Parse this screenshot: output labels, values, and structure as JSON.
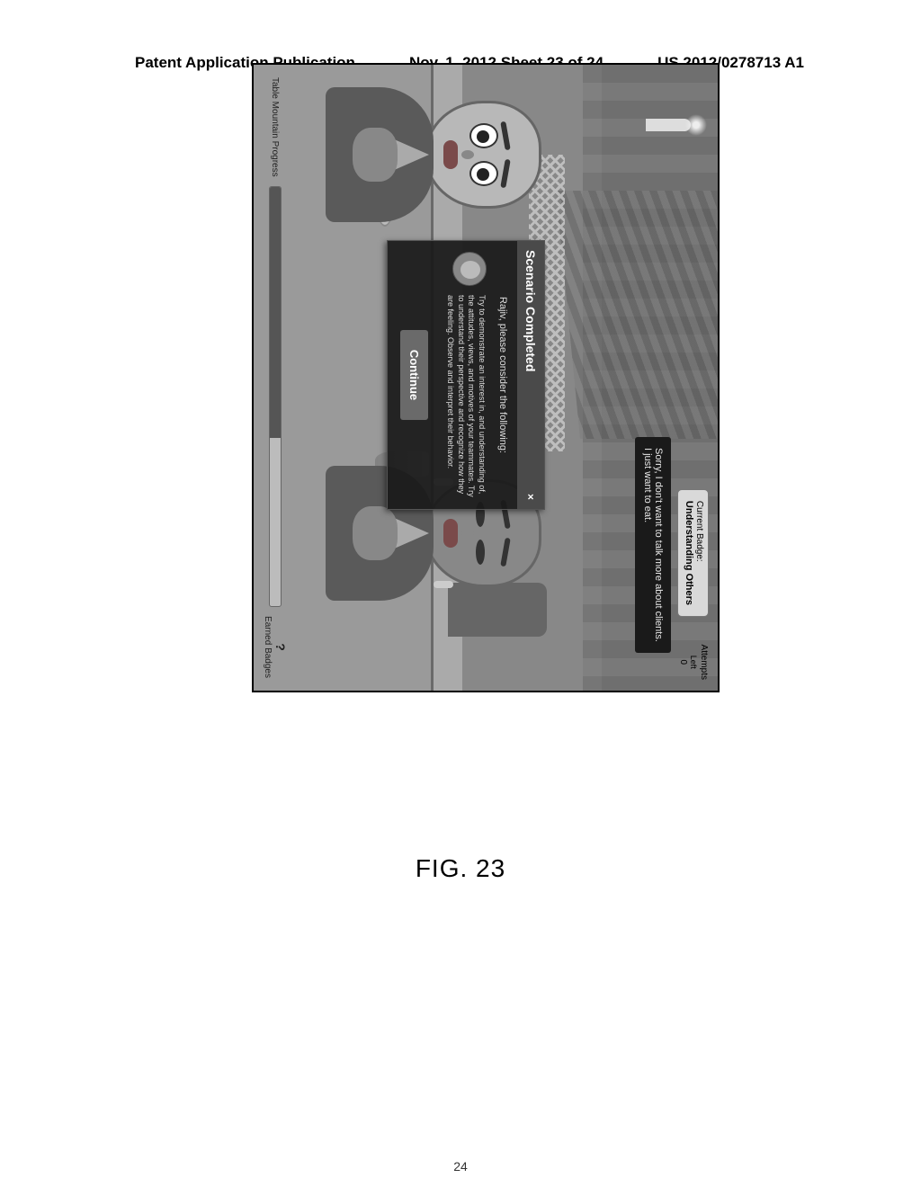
{
  "header": {
    "left": "Patent Application Publication",
    "center": "Nov. 1, 2012  Sheet 23 of 24",
    "right": "US 2012/0278713 A1"
  },
  "figure_label": "FIG. 23",
  "hud": {
    "badge_label": "Current Badge:",
    "badge_name": "Understanding Others",
    "attempts_label": "Attempts",
    "attempts_sub": "Left",
    "attempts_value": "0"
  },
  "speech": {
    "line1": "Sorry, I don't want to talk more about clients.",
    "line2": "I just want to eat."
  },
  "modal": {
    "title": "Scenario Completed",
    "close": "×",
    "subtitle": "Rajiv, please consider the following:",
    "tip": "Try to demonstrate an interest in, and understanding of, the attitudes, views, and motives of your teammates. Try to understand their perspective and recognize how they are feeling. Observe and interpret their behavior.",
    "continue": "Continue"
  },
  "progress": {
    "label": "Table Mountain Progress",
    "percent": 60,
    "earned_q": "?",
    "earned_label": "Earned",
    "earned_sub": "Badges"
  },
  "page_number": "24"
}
